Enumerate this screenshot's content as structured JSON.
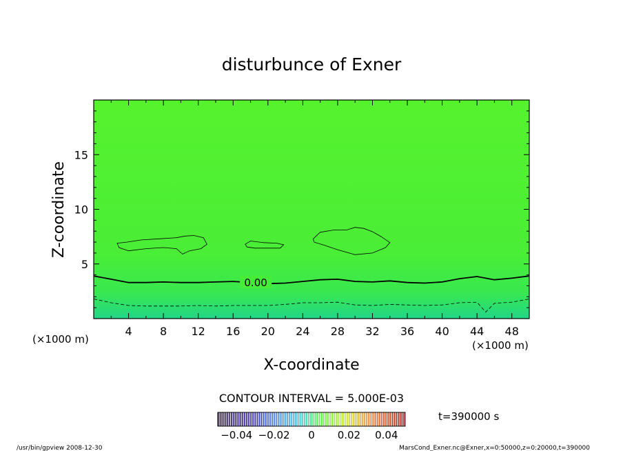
{
  "chart_data": {
    "type": "contour",
    "title": "disturbunce of Exner",
    "xlabel": "X-coordinate",
    "ylabel": "Z-coordinate",
    "x_unit": "(×1000 m)",
    "z_unit": "(×1000 m)",
    "xlim": [
      0,
      50
    ],
    "ylim": [
      0,
      20
    ],
    "x_ticks": [
      4,
      8,
      12,
      16,
      20,
      24,
      28,
      32,
      36,
      40,
      44,
      48
    ],
    "y_ticks": [
      5,
      10,
      15
    ],
    "contour_interval_text": "CONTOUR INTERVAL = 5.000E-03",
    "time_text": "t=390000 s",
    "colorbar_ticks": [
      "−0.04",
      "−0.02",
      "0",
      "0.02",
      "0.04"
    ],
    "colorbar_range": [
      -0.05,
      0.05
    ],
    "contour_label": "0.00",
    "contours": [
      {
        "level": 0.0,
        "style": "solid-bold",
        "x": [
          0,
          2,
          4,
          6,
          8,
          10,
          12,
          14,
          16,
          18,
          20,
          22,
          24,
          26,
          28,
          30,
          32,
          34,
          36,
          38,
          40,
          42,
          44,
          46,
          48,
          50
        ],
        "z": [
          3.9,
          3.6,
          3.3,
          3.3,
          3.35,
          3.3,
          3.3,
          3.35,
          3.4,
          3.3,
          3.2,
          3.25,
          3.4,
          3.55,
          3.6,
          3.4,
          3.35,
          3.45,
          3.3,
          3.25,
          3.35,
          3.65,
          3.85,
          3.55,
          3.7,
          3.9
        ]
      },
      {
        "level": -0.005,
        "style": "dashed",
        "x": [
          0,
          2,
          4,
          6,
          8,
          10,
          12,
          14,
          16,
          18,
          20,
          22,
          24,
          26,
          28,
          30,
          32,
          34,
          36,
          38,
          40,
          42,
          44,
          45,
          46,
          48,
          50
        ],
        "z": [
          1.8,
          1.45,
          1.2,
          1.15,
          1.15,
          1.15,
          1.2,
          1.15,
          1.2,
          1.2,
          1.2,
          1.3,
          1.45,
          1.45,
          1.5,
          1.25,
          1.2,
          1.3,
          1.25,
          1.2,
          1.25,
          1.45,
          1.5,
          0.6,
          1.4,
          1.5,
          1.8
        ]
      },
      {
        "level": 0.005,
        "style": "solid-thin",
        "closed": true,
        "x": [
          2.7,
          3.8,
          5.5,
          7.5,
          9.5,
          10.5,
          11.5,
          12.6,
          13.0,
          12.3,
          11.0,
          10.2,
          9.5,
          8.0,
          6.0,
          4.0,
          2.9
        ],
        "z": [
          6.9,
          7.0,
          7.2,
          7.3,
          7.4,
          7.55,
          7.6,
          7.4,
          6.8,
          6.4,
          6.2,
          5.9,
          6.4,
          6.5,
          6.4,
          6.2,
          6.5
        ]
      },
      {
        "level": 0.005,
        "style": "solid-thin",
        "closed": true,
        "x": [
          17.4,
          18.0,
          19.5,
          21.0,
          21.8,
          21.4,
          20.0,
          18.5,
          17.6
        ],
        "z": [
          6.8,
          7.1,
          6.95,
          6.9,
          6.75,
          6.45,
          6.45,
          6.45,
          6.55
        ]
      },
      {
        "level": 0.005,
        "style": "solid-thin",
        "closed": true,
        "x": [
          25.2,
          26.0,
          27.5,
          29.0,
          30.0,
          31.0,
          32.0,
          33.0,
          34.0,
          33.5,
          32.0,
          30.0,
          28.0,
          26.5,
          25.3
        ],
        "z": [
          7.3,
          7.9,
          8.1,
          8.1,
          8.35,
          8.25,
          7.95,
          7.5,
          6.95,
          6.5,
          6.0,
          5.85,
          6.3,
          6.7,
          7.0
        ]
      }
    ],
    "fill_colors": [
      "#22d688",
      "#39e850",
      "#4aee36",
      "#56f22e"
    ]
  },
  "footer": {
    "left": "/usr/bin/gpview   2008-12-30",
    "right": "MarsCond_Exner.nc@Exner,x=0:50000,z=0:20000,t=390000"
  }
}
